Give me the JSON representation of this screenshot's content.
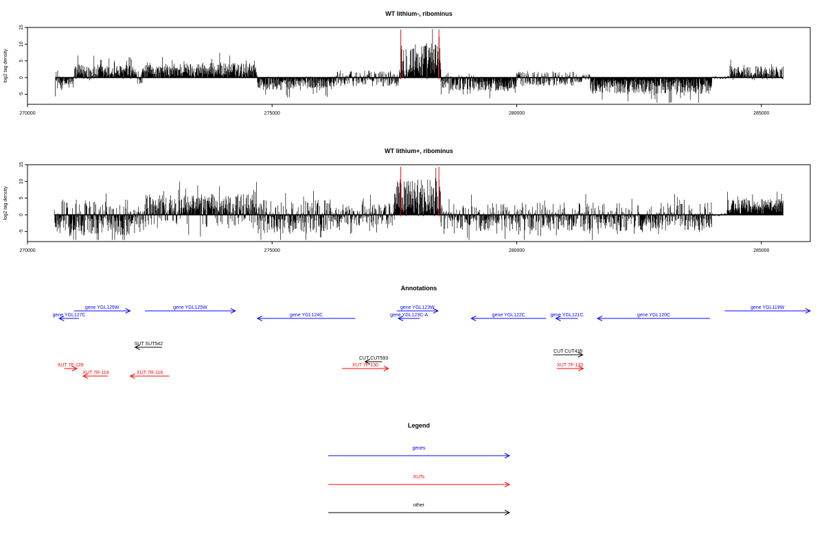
{
  "colors": {
    "gene": "#0000ff",
    "xut": "#ff0000",
    "other": "#000000",
    "marker": "#ff0000",
    "signal": "#000000"
  },
  "chart_data": [
    {
      "type": "bar",
      "title": "WT lithium-, ribominus",
      "ylabel": "log2 tag density",
      "xlim": [
        270000,
        286000
      ],
      "ylim": [
        -8,
        15
      ],
      "xticks": [
        270000,
        275000,
        280000,
        285000
      ],
      "yticks": [
        -5,
        0,
        5,
        10,
        15
      ],
      "red_markers": [
        277630,
        278410
      ],
      "segments": [
        {
          "from": 270570,
          "to": 270650,
          "mean": -1.0,
          "amp": 1.5
        },
        {
          "from": 270650,
          "to": 270950,
          "mean": -1.5,
          "amp": 1.2
        },
        {
          "from": 270950,
          "to": 271500,
          "mean": 1.5,
          "amp": 1.5
        },
        {
          "from": 271500,
          "to": 272200,
          "mean": 1.6,
          "amp": 1.3
        },
        {
          "from": 272200,
          "to": 272350,
          "mean": -0.5,
          "amp": 1.5
        },
        {
          "from": 272350,
          "to": 273000,
          "mean": 1.8,
          "amp": 1.2
        },
        {
          "from": 273000,
          "to": 274700,
          "mean": 2.2,
          "amp": 1.4
        },
        {
          "from": 274700,
          "to": 275400,
          "mean": -1.8,
          "amp": 1.3
        },
        {
          "from": 275400,
          "to": 276300,
          "mean": -1.5,
          "amp": 1.2
        },
        {
          "from": 276300,
          "to": 277600,
          "mean": -0.3,
          "amp": 1.5
        },
        {
          "from": 277600,
          "to": 278450,
          "mean": 5.0,
          "amp": 3.5
        },
        {
          "from": 278450,
          "to": 279200,
          "mean": -1.5,
          "amp": 1.5
        },
        {
          "from": 279200,
          "to": 280000,
          "mean": -2.0,
          "amp": 1.3
        },
        {
          "from": 280000,
          "to": 281200,
          "mean": -0.3,
          "amp": 1.4
        },
        {
          "from": 281200,
          "to": 281500,
          "mean": -0.2,
          "amp": 0.8
        },
        {
          "from": 281500,
          "to": 284000,
          "mean": -2.5,
          "amp": 1.5
        },
        {
          "from": 284000,
          "to": 284350,
          "mean": 0.0,
          "amp": 0.3
        },
        {
          "from": 284350,
          "to": 285450,
          "mean": 1.5,
          "amp": 1.3
        }
      ]
    },
    {
      "type": "bar",
      "title": "WT lithium+, ribominus",
      "ylabel": "log2 tag density",
      "xlim": [
        270000,
        286000
      ],
      "ylim": [
        -8,
        15
      ],
      "xticks": [
        270000,
        275000,
        280000,
        285000
      ],
      "yticks": [
        -5,
        0,
        5,
        10,
        15
      ],
      "red_markers": [
        277630,
        278410
      ],
      "segments": [
        {
          "from": 270550,
          "to": 272100,
          "mean": -3.0,
          "amp": 2.0,
          "mean2": 1.5
        },
        {
          "from": 272100,
          "to": 272400,
          "mean": -1.0,
          "amp": 1.5
        },
        {
          "from": 272400,
          "to": 274700,
          "mean": 3.0,
          "amp": 2.0,
          "mean2": -0.8
        },
        {
          "from": 274700,
          "to": 276200,
          "mean": -2.5,
          "amp": 2.0,
          "mean2": 1.5
        },
        {
          "from": 276200,
          "to": 277500,
          "mean": -1.0,
          "amp": 1.5,
          "mean2": 1.2
        },
        {
          "from": 277500,
          "to": 278450,
          "mean": 5.0,
          "amp": 3.5
        },
        {
          "from": 278450,
          "to": 284000,
          "mean": -2.0,
          "amp": 1.8,
          "mean2": 0.8
        },
        {
          "from": 284000,
          "to": 284300,
          "mean": 0.0,
          "amp": 0.3
        },
        {
          "from": 284300,
          "to": 285450,
          "mean": 2.5,
          "amp": 1.4
        }
      ]
    }
  ],
  "annotations": {
    "title": "Annotations",
    "features": [
      {
        "label": "gene YGL127C",
        "kind": "gene",
        "start": 270650,
        "end": 271050,
        "strand": "-",
        "row": 1
      },
      {
        "label": "gene YGL126W",
        "kind": "gene",
        "start": 270950,
        "end": 272100,
        "strand": "+",
        "row": 0
      },
      {
        "label": "gene YGL125W",
        "kind": "gene",
        "start": 272400,
        "end": 274250,
        "strand": "+",
        "row": 0
      },
      {
        "label": "gene YGL124C",
        "kind": "gene",
        "start": 274700,
        "end": 276700,
        "strand": "-",
        "row": 1
      },
      {
        "label": "gene YGL123W",
        "kind": "gene",
        "start": 277550,
        "end": 278390,
        "strand": "+",
        "row": 0
      },
      {
        "label": "gene YGL123C-A",
        "kind": "gene",
        "start": 277580,
        "end": 278020,
        "strand": "-",
        "row": 1
      },
      {
        "label": "gene YGL122C",
        "kind": "gene",
        "start": 279070,
        "end": 280600,
        "strand": "-",
        "row": 1
      },
      {
        "label": "gene YGL121C",
        "kind": "gene",
        "start": 280800,
        "end": 281250,
        "strand": "-",
        "row": 1
      },
      {
        "label": "gene YGL120C",
        "kind": "gene",
        "start": 281650,
        "end": 283950,
        "strand": "-",
        "row": 1
      },
      {
        "label": "gene YGL119W",
        "kind": "gene",
        "start": 284250,
        "end": 286000,
        "strand": "+",
        "row": 0
      },
      {
        "label": "SUT SUT542",
        "kind": "other",
        "start": 272200,
        "end": 272750,
        "strand": "-",
        "row": 2
      },
      {
        "label": "CUT CUT593",
        "kind": "other",
        "start": 276900,
        "end": 277250,
        "strand": "-",
        "row": 3
      },
      {
        "label": "CUT CUT435",
        "kind": "other",
        "start": 280750,
        "end": 281350,
        "strand": "+",
        "row": 4
      },
      {
        "label": "XUT 7F-128",
        "kind": "xut",
        "start": 270750,
        "end": 271010,
        "strand": "+",
        "row": 5
      },
      {
        "label": "XUT 7R-114",
        "kind": "xut",
        "start": 271140,
        "end": 271650,
        "strand": "-",
        "row": 6
      },
      {
        "label": "XUT 7R-116",
        "kind": "xut",
        "start": 272100,
        "end": 272900,
        "strand": "-",
        "row": 6
      },
      {
        "label": "XUT 7F-130",
        "kind": "xut",
        "start": 276430,
        "end": 277380,
        "strand": "+",
        "row": 5
      },
      {
        "label": "XUT 7F-133",
        "kind": "xut",
        "start": 280820,
        "end": 281360,
        "strand": "+",
        "row": 5
      }
    ]
  },
  "legend": {
    "title": "Legend",
    "items": [
      {
        "label": "genes",
        "kind": "gene"
      },
      {
        "label": "XUTs",
        "kind": "xut"
      },
      {
        "label": "other",
        "kind": "other"
      }
    ]
  }
}
